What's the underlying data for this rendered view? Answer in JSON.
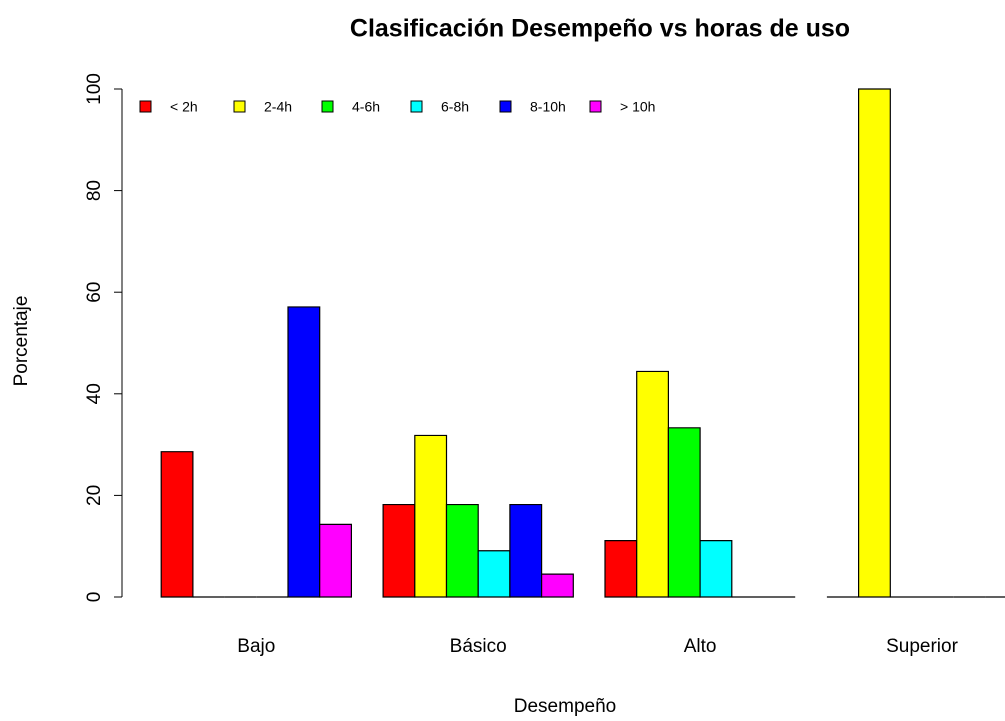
{
  "chart_data": {
    "type": "bar",
    "title": "Clasificación Desempeño vs horas de uso",
    "x_label": "Desempeño",
    "y_label": "Porcentaje",
    "categories": [
      "Bajo",
      "Básico",
      "Alto",
      "Superior"
    ],
    "series": [
      {
        "name": "< 2h",
        "color": "#ff0000",
        "values": [
          28.6,
          18.2,
          11.1,
          0
        ]
      },
      {
        "name": "2-4h",
        "color": "#ffff00",
        "values": [
          0,
          31.8,
          44.4,
          100
        ]
      },
      {
        "name": "4-6h",
        "color": "#00ff00",
        "values": [
          0,
          18.2,
          33.3,
          0
        ]
      },
      {
        "name": "6-8h",
        "color": "#00ffff",
        "values": [
          0,
          9.1,
          11.1,
          0
        ]
      },
      {
        "name": "8-10h",
        "color": "#0000ff",
        "values": [
          57.1,
          18.2,
          0,
          0
        ]
      },
      {
        "name": "> 10h",
        "color": "#ff00ff",
        "values": [
          14.3,
          4.5,
          0,
          0
        ]
      }
    ],
    "ylim": [
      0,
      100
    ],
    "yticks": [
      0,
      20,
      40,
      60,
      80,
      100
    ],
    "legend": "top-left"
  }
}
